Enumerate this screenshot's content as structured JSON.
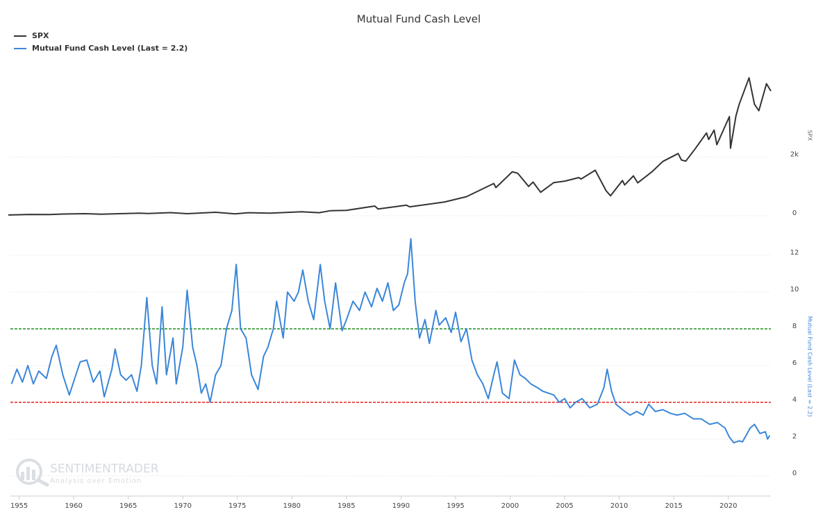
{
  "chart_data": [
    {
      "type": "line",
      "title": "Mutual Fund Cash Level",
      "y_label": "SPX",
      "x": [
        1954,
        1956,
        1957.8,
        1959,
        1961,
        1962.5,
        1966,
        1966.8,
        1968.9,
        1970.4,
        1973,
        1974.8,
        1976,
        1978,
        1980.9,
        1982.5,
        1983.5,
        1985,
        1987.6,
        1987.9,
        1990.5,
        1990.8,
        1994,
        1996,
        1998.5,
        1998.7,
        2000.2,
        2000.7,
        2001.7,
        2002.1,
        2002.8,
        2004,
        2005,
        2006.3,
        2006.5,
        2007.8,
        2008.8,
        2009.2,
        2010.3,
        2010.5,
        2011.3,
        2011.7,
        2013,
        2014,
        2015.4,
        2015.7,
        2016.1,
        2017,
        2018,
        2018.2,
        2018.7,
        2018.95,
        2020.1,
        2020.2,
        2020.7,
        2021,
        2021.9,
        2022.4,
        2022.8,
        2023.5,
        2023.9
      ],
      "series": [
        {
          "name": "SPX",
          "color": "#333333",
          "values": [
            26,
            45,
            40,
            58,
            70,
            55,
            90,
            77,
            106,
            72,
            118,
            65,
            105,
            88,
            135,
            105,
            170,
            185,
            330,
            230,
            360,
            305,
            470,
            650,
            1100,
            960,
            1500,
            1450,
            1000,
            1150,
            800,
            1130,
            1180,
            1300,
            1250,
            1550,
            850,
            680,
            1200,
            1050,
            1360,
            1120,
            1500,
            1850,
            2120,
            1900,
            1860,
            2300,
            2820,
            2600,
            2920,
            2420,
            3380,
            2300,
            3400,
            3800,
            4700,
            3800,
            3580,
            4500,
            4250
          ]
        }
      ],
      "xlim": [
        1954.2,
        2023.9
      ],
      "ylim": [
        0,
        5000
      ],
      "yticks": [
        0,
        {
          "value": 2000,
          "label": "2k"
        }
      ],
      "grid": true
    },
    {
      "type": "line",
      "y_label": "Mutual Fund Cash Level (Last = 2.2)",
      "x": [
        1954.3,
        1954.8,
        1955.3,
        1955.8,
        1956.3,
        1956.8,
        1957.5,
        1958,
        1958.4,
        1959,
        1959.6,
        1960.2,
        1960.6,
        1961.2,
        1961.8,
        1962.4,
        1962.8,
        1963.5,
        1963.8,
        1964.3,
        1964.8,
        1965.3,
        1965.8,
        1966.2,
        1966.7,
        1967.2,
        1967.6,
        1968.1,
        1968.5,
        1969.1,
        1969.4,
        1970,
        1970.4,
        1970.9,
        1971.3,
        1971.7,
        1972.1,
        1972.5,
        1973,
        1973.5,
        1974,
        1974.5,
        1974.9,
        1975.3,
        1975.8,
        1976.3,
        1976.9,
        1977.4,
        1977.8,
        1978.3,
        1978.6,
        1979.2,
        1979.6,
        1980.2,
        1980.6,
        1981,
        1981.5,
        1982,
        1982.6,
        1983,
        1983.5,
        1984,
        1984.6,
        1985,
        1985.6,
        1986.2,
        1986.7,
        1987.3,
        1987.8,
        1988.3,
        1988.8,
        1989.3,
        1989.8,
        1990.3,
        1990.6,
        1990.9,
        1991.3,
        1991.7,
        1992.2,
        1992.6,
        1993.2,
        1993.5,
        1994.1,
        1994.6,
        1995,
        1995.5,
        1996,
        1996.5,
        1997,
        1997.5,
        1998,
        1998.5,
        1998.8,
        1999.3,
        1999.9,
        2000.4,
        2000.9,
        2001.4,
        2001.9,
        2002.5,
        2003,
        2003.5,
        2004,
        2004.5,
        2005,
        2005.5,
        2006,
        2006.6,
        2007.3,
        2008,
        2008.6,
        2008.9,
        2009.3,
        2009.7,
        2010.3,
        2011,
        2011.6,
        2012.2,
        2012.7,
        2013.3,
        2014,
        2014.7,
        2015.3,
        2016,
        2016.8,
        2017.5,
        2018.3,
        2019,
        2019.7,
        2020.1,
        2020.5,
        2021,
        2021.3,
        2022,
        2022.4,
        2022.9,
        2023.4,
        2023.6,
        2023.8
      ],
      "series": [
        {
          "name": "Mutual Fund Cash Level (Last = 2.2)",
          "color": "#3a86d9",
          "values": [
            5.0,
            5.8,
            5.1,
            6.0,
            5.0,
            5.7,
            5.3,
            6.5,
            7.1,
            5.5,
            4.4,
            5.5,
            6.2,
            6.3,
            5.1,
            5.7,
            4.3,
            5.8,
            6.9,
            5.5,
            5.2,
            5.5,
            4.6,
            6.0,
            9.7,
            6.0,
            5.0,
            9.2,
            5.5,
            7.5,
            5.0,
            7.0,
            10.1,
            7.0,
            6.0,
            4.5,
            5.0,
            4.0,
            5.5,
            6.0,
            8.0,
            9.0,
            11.5,
            8.0,
            7.5,
            5.5,
            4.7,
            6.5,
            7.0,
            8.0,
            9.5,
            7.5,
            10.0,
            9.5,
            10.0,
            11.2,
            9.5,
            8.5,
            11.5,
            9.5,
            8.0,
            10.5,
            7.9,
            8.5,
            9.5,
            9.0,
            10.0,
            9.2,
            10.2,
            9.5,
            10.5,
            9.0,
            9.3,
            10.5,
            11.0,
            12.9,
            9.5,
            7.5,
            8.5,
            7.2,
            9.0,
            8.2,
            8.6,
            7.8,
            8.9,
            7.3,
            8.0,
            6.3,
            5.5,
            5.0,
            4.2,
            5.5,
            6.2,
            4.5,
            4.2,
            6.3,
            5.5,
            5.3,
            5.0,
            4.8,
            4.6,
            4.5,
            4.4,
            4.0,
            4.2,
            3.7,
            4.0,
            4.2,
            3.7,
            3.9,
            4.8,
            5.8,
            4.6,
            3.9,
            3.6,
            3.3,
            3.5,
            3.3,
            3.9,
            3.5,
            3.6,
            3.4,
            3.3,
            3.4,
            3.1,
            3.1,
            2.8,
            2.9,
            2.6,
            2.1,
            1.8,
            1.9,
            1.85,
            2.6,
            2.8,
            2.3,
            2.4,
            2.0,
            2.2
          ]
        }
      ],
      "xlim": [
        1954.2,
        2023.9
      ],
      "ylim": [
        -1.1,
        13
      ],
      "xticks": [
        1955,
        1960,
        1965,
        1970,
        1975,
        1980,
        1985,
        1990,
        1995,
        2000,
        2005,
        2010,
        2015,
        2020
      ],
      "yticks": [
        0,
        2,
        4,
        6,
        8,
        10,
        12
      ],
      "grid": true,
      "reference_lines": [
        {
          "value": 8,
          "color": "#1e8c1e"
        },
        {
          "value": 4,
          "color": "#e3211c"
        }
      ]
    }
  ],
  "watermark": {
    "name": "SENTIMENTRADER",
    "tagline": "Analysis over Emotion"
  }
}
